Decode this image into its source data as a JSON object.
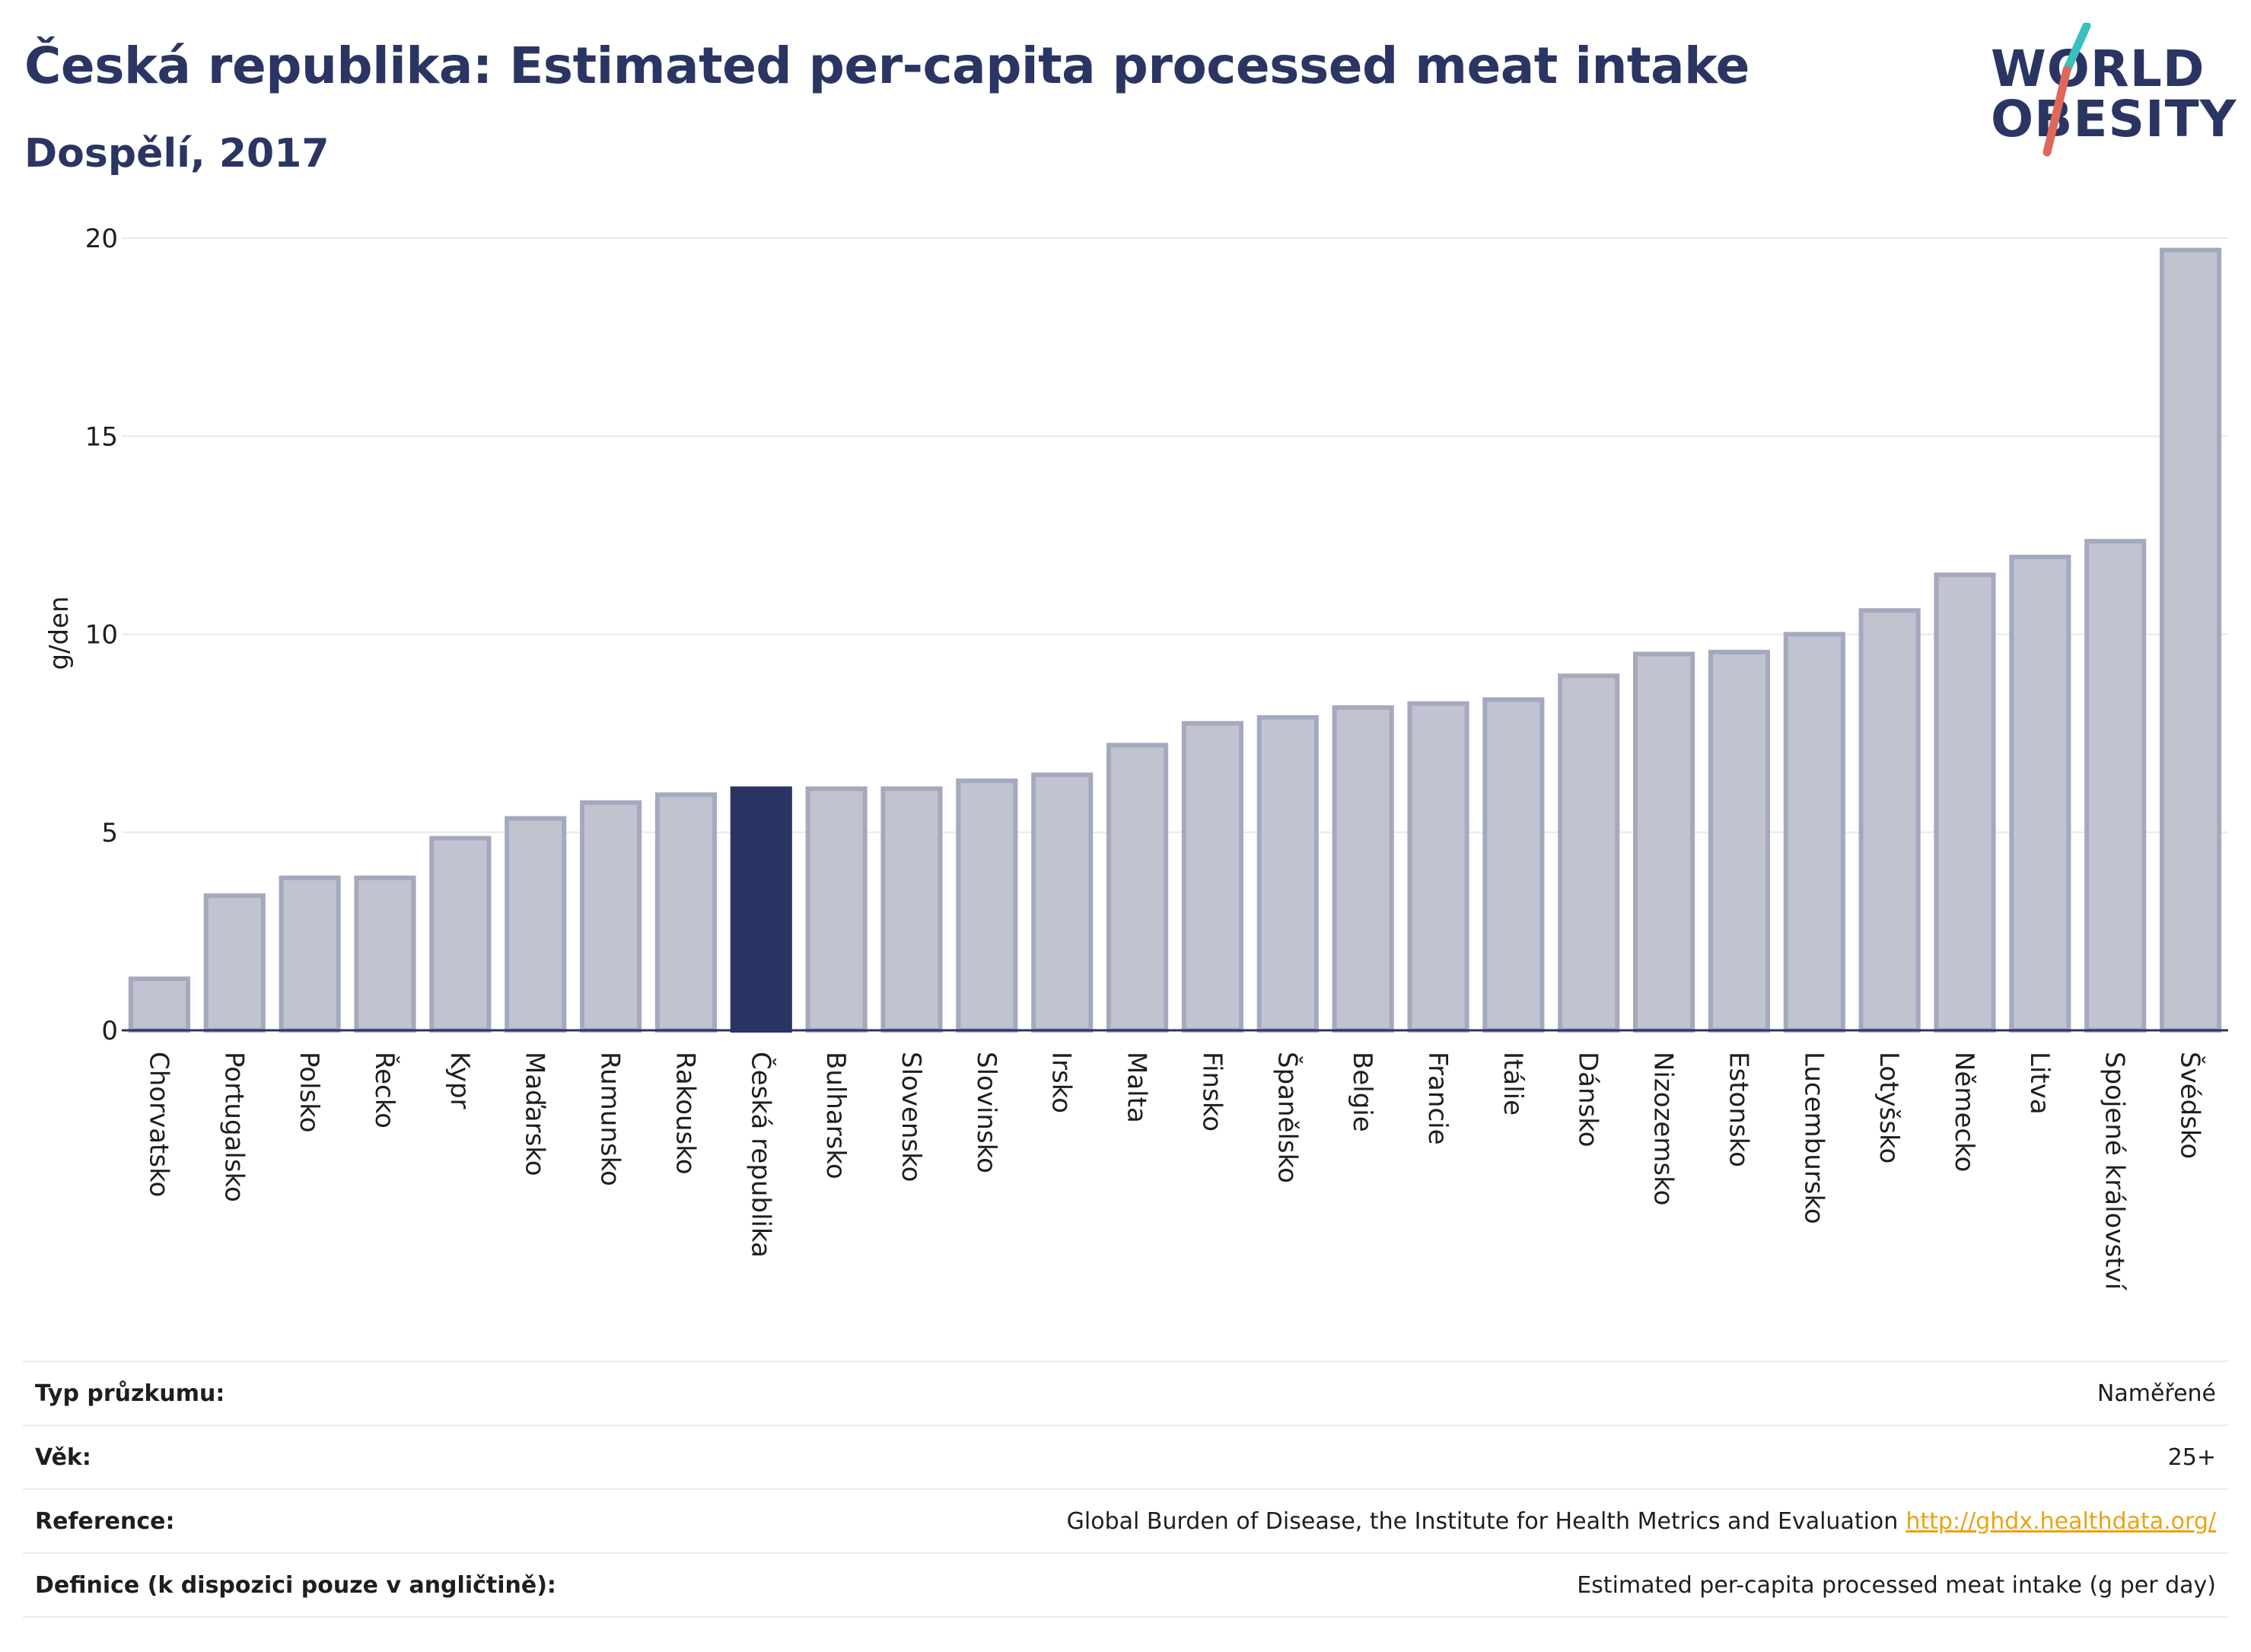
{
  "header": {
    "title": "Česká republika: Estimated per-capita processed meat intake",
    "subtitle": "Dospělí, 2017"
  },
  "logo": {
    "line1": "WORLD",
    "line2": "OBESITY",
    "colors": {
      "text": "#2a3563",
      "slash_teal": "#3bbfbf",
      "slash_red": "#e0685a"
    }
  },
  "chart_data": {
    "type": "bar",
    "ylabel": "g/den",
    "ylim": [
      0,
      20
    ],
    "yticks": [
      0,
      5,
      10,
      15,
      20
    ],
    "grid": true,
    "highlight_category": "Česká republika",
    "colors": {
      "bar": "#c0c4d0",
      "bar_stroke": "#a4a9be",
      "highlight": "#2a3563",
      "axis": "#2a3563",
      "grid": "#e6e8ec"
    },
    "categories": [
      "Chorvatsko",
      "Portugalsko",
      "Polsko",
      "Řecko",
      "Kypr",
      "Maďarsko",
      "Rumunsko",
      "Rakousko",
      "Česká republika",
      "Bulharsko",
      "Slovensko",
      "Slovinsko",
      "Irsko",
      "Malta",
      "Finsko",
      "Španělsko",
      "Belgie",
      "Francie",
      "Itálie",
      "Dánsko",
      "Nizozemsko",
      "Estonsko",
      "Lucembursko",
      "Lotyšsko",
      "Německo",
      "Litva",
      "Spojené království",
      "Švédsko"
    ],
    "values": [
      1.3,
      3.4,
      3.85,
      3.85,
      4.85,
      5.35,
      5.75,
      5.95,
      6.1,
      6.1,
      6.1,
      6.3,
      6.45,
      7.2,
      7.75,
      7.9,
      8.15,
      8.25,
      8.35,
      8.95,
      9.5,
      9.55,
      10.0,
      10.6,
      11.5,
      11.95,
      12.35,
      19.7
    ]
  },
  "info_table": [
    {
      "key": "Typ průzkumu:",
      "value": "Naměřené"
    },
    {
      "key": "Věk:",
      "value": "25+"
    },
    {
      "key": "Reference:",
      "value": "Global Burden of Disease, the Institute for Health Metrics and Evaluation",
      "link": "http://ghdx.healthdata.org/"
    },
    {
      "key": "Definice (k dispozici pouze v angličtině):",
      "value": "Estimated per-capita processed meat intake (g per day)"
    }
  ]
}
